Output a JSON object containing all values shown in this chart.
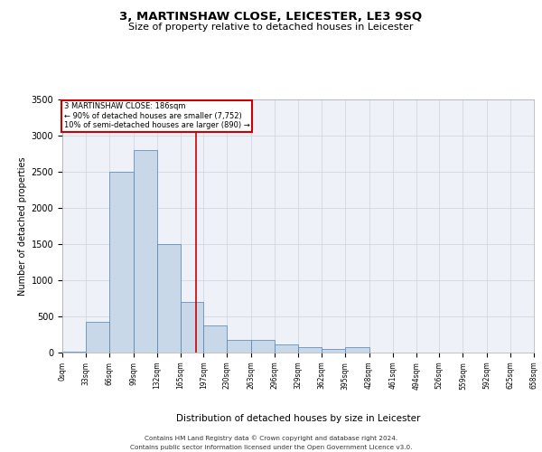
{
  "title": "3, MARTINSHAW CLOSE, LEICESTER, LE3 9SQ",
  "subtitle": "Size of property relative to detached houses in Leicester",
  "xlabel": "Distribution of detached houses by size in Leicester",
  "ylabel": "Number of detached properties",
  "bin_edges": [
    0,
    33,
    66,
    99,
    132,
    165,
    197,
    230,
    263,
    296,
    329,
    362,
    395,
    428,
    461,
    494,
    526,
    559,
    592,
    625,
    658
  ],
  "bar_heights": [
    10,
    430,
    2500,
    2800,
    1500,
    700,
    380,
    175,
    175,
    110,
    75,
    50,
    80,
    5,
    5,
    0,
    0,
    0,
    0,
    0
  ],
  "bar_color": "#c8d8e8",
  "bar_edge_color": "#5080b0",
  "property_size": 186,
  "property_line_color": "#cc0000",
  "annotation_line1": "3 MARTINSHAW CLOSE: 186sqm",
  "annotation_line2": "← 90% of detached houses are smaller (7,752)",
  "annotation_line3": "10% of semi-detached houses are larger (890) →",
  "annotation_box_color": "#cc0000",
  "ylim": [
    0,
    3500
  ],
  "yticks": [
    0,
    500,
    1000,
    1500,
    2000,
    2500,
    3000,
    3500
  ],
  "grid_color": "#d0d8e8",
  "background_color": "#eef2f8",
  "footer_line1": "Contains HM Land Registry data © Crown copyright and database right 2024.",
  "footer_line2": "Contains public sector information licensed under the Open Government Licence v3.0.",
  "tick_labels": [
    "0sqm",
    "33sqm",
    "66sqm",
    "99sqm",
    "132sqm",
    "165sqm",
    "197sqm",
    "230sqm",
    "263sqm",
    "296sqm",
    "329sqm",
    "362sqm",
    "395sqm",
    "428sqm",
    "461sqm",
    "494sqm",
    "526sqm",
    "559sqm",
    "592sqm",
    "625sqm",
    "658sqm"
  ]
}
